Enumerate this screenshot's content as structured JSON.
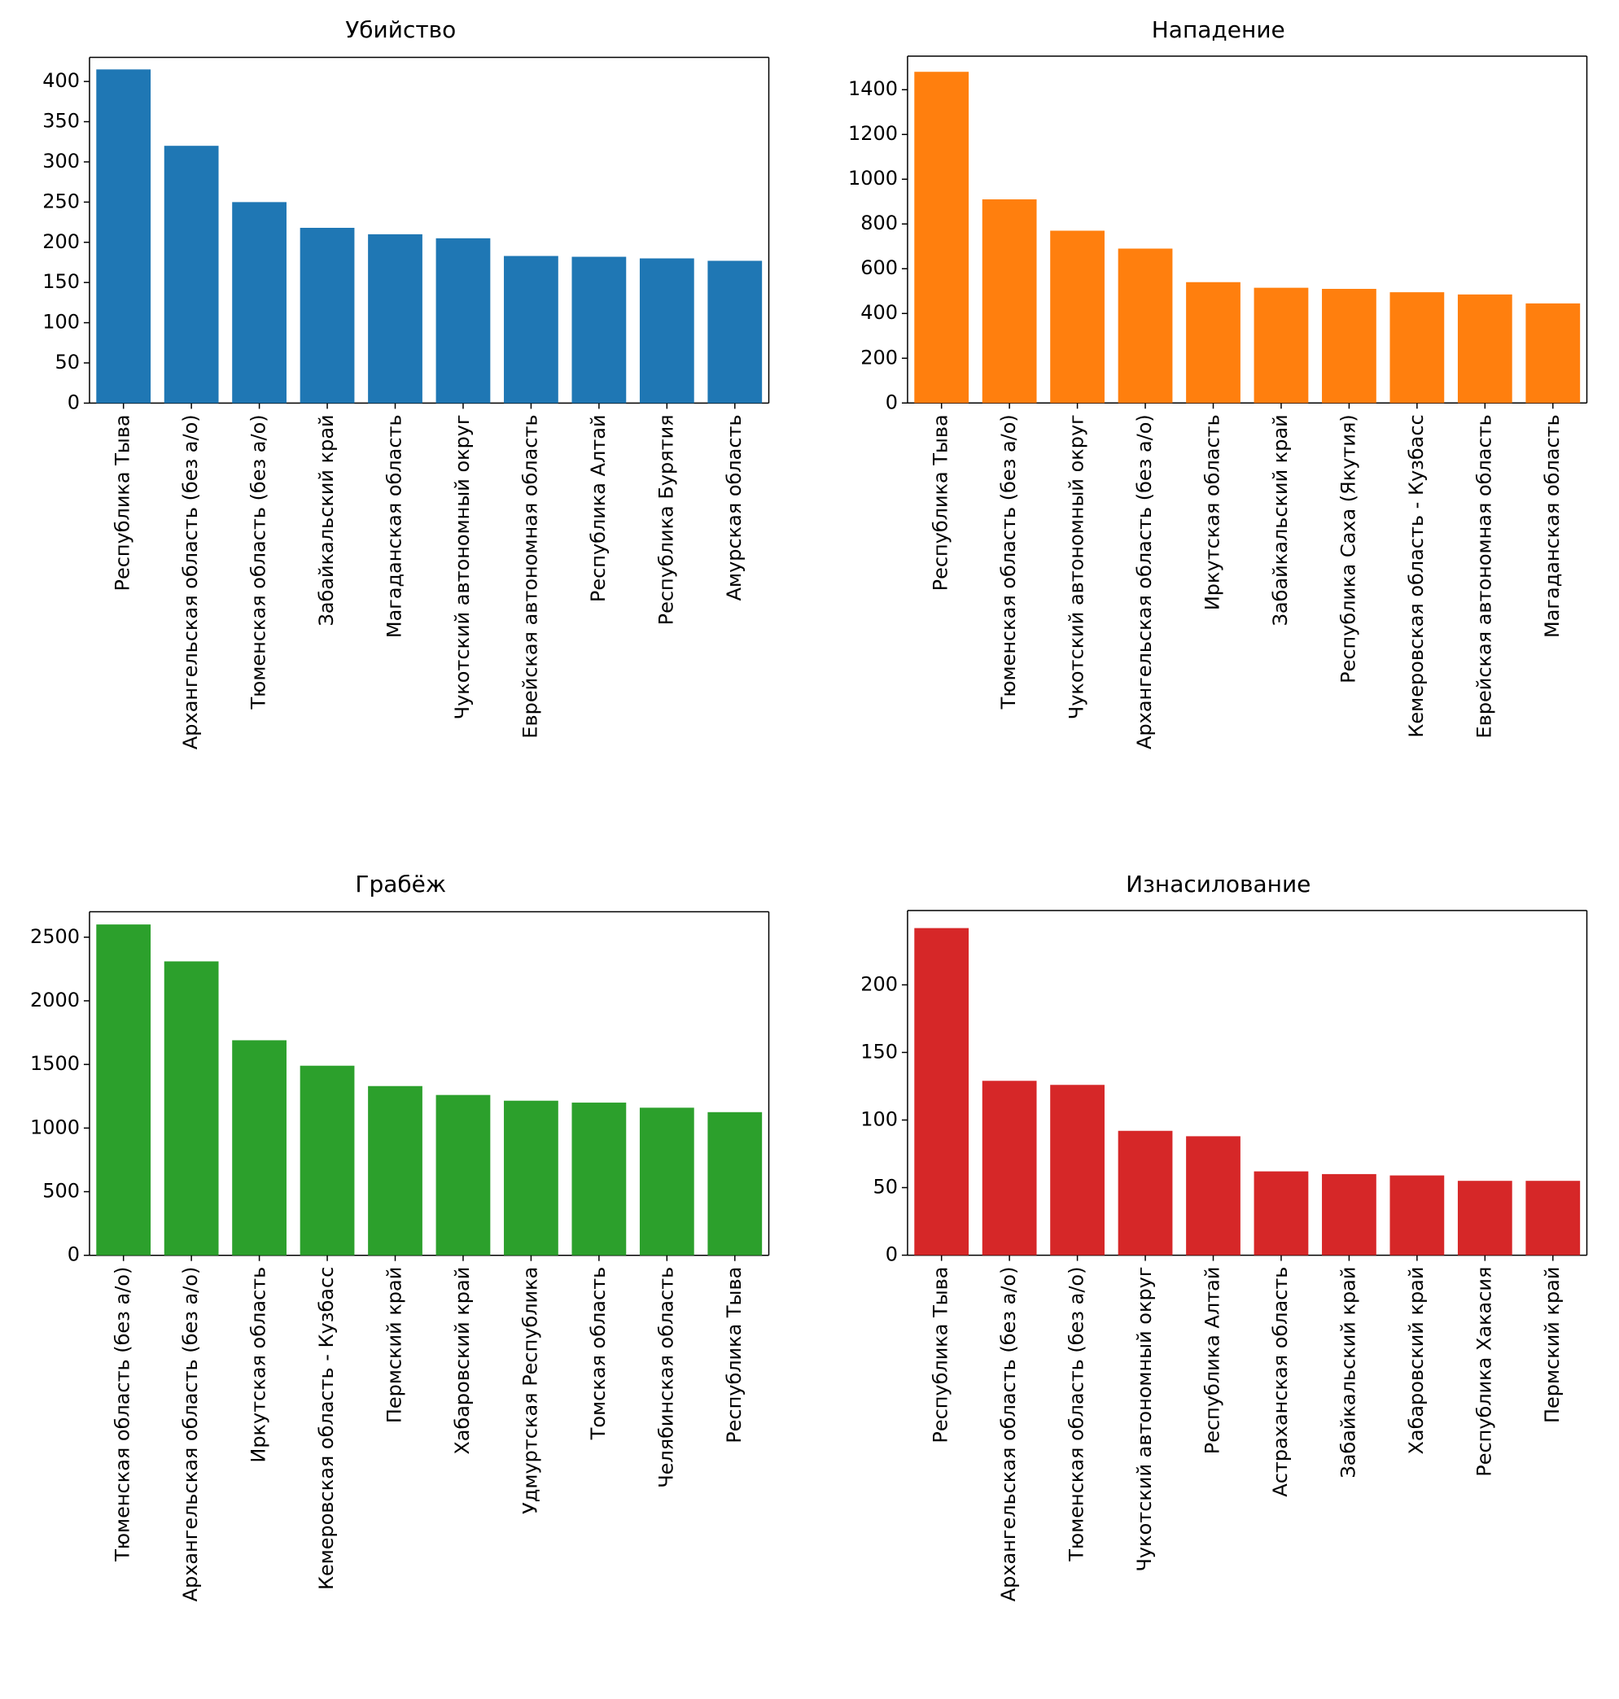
{
  "layout": {
    "rows": 2,
    "cols": 2,
    "background_color": "#ffffff",
    "title_fontsize": 28,
    "tick_fontsize": 24,
    "xlabel_fontsize": 24,
    "xlabel_rotation": 90,
    "axis_color": "#000000",
    "bar_width_ratio": 0.8
  },
  "charts": [
    {
      "id": "chart-murder",
      "title": "Убийство",
      "type": "bar",
      "bar_color": "#1f77b4",
      "ylim": [
        0,
        430
      ],
      "yticks": [
        0,
        50,
        100,
        150,
        200,
        250,
        300,
        350,
        400
      ],
      "categories": [
        "Республика Тыва",
        "Архангельская область (без а/о)",
        "Тюменская область (без а/о)",
        "Забайкальский край",
        "Магаданская область",
        "Чукотский автономный округ",
        "Еврейская автономная область",
        "Республика Алтай",
        "Республика Бурятия",
        "Амурская область"
      ],
      "values": [
        415,
        320,
        250,
        218,
        210,
        205,
        183,
        182,
        180,
        177
      ]
    },
    {
      "id": "chart-assault",
      "title": "Нападение",
      "type": "bar",
      "bar_color": "#ff7f0e",
      "ylim": [
        0,
        1550
      ],
      "yticks": [
        0,
        200,
        400,
        600,
        800,
        1000,
        1200,
        1400
      ],
      "categories": [
        "Республика Тыва",
        "Тюменская область (без а/о)",
        "Чукотский автономный округ",
        "Архангельская область (без а/о)",
        "Иркутская область",
        "Забайкальский край",
        "Республика Саха (Якутия)",
        "Кемеровская область - Кузбасс",
        "Еврейская автономная область",
        "Магаданская область"
      ],
      "values": [
        1480,
        910,
        770,
        690,
        540,
        515,
        510,
        495,
        485,
        445
      ]
    },
    {
      "id": "chart-robbery",
      "title": "Грабёж",
      "type": "bar",
      "bar_color": "#2ca02c",
      "ylim": [
        0,
        2700
      ],
      "yticks": [
        0,
        500,
        1000,
        1500,
        2000,
        2500
      ],
      "categories": [
        "Тюменская область (без а/о)",
        "Архангельская область (без а/о)",
        "Иркутская область",
        "Кемеровская область - Кузбасс",
        "Пермский край",
        "Хабаровский край",
        "Удмуртская Республика",
        "Томская область",
        "Челябинская область",
        "Республика Тыва"
      ],
      "values": [
        2600,
        2310,
        1690,
        1490,
        1330,
        1260,
        1215,
        1200,
        1160,
        1125
      ]
    },
    {
      "id": "chart-rape",
      "title": "Изнасилование",
      "type": "bar",
      "bar_color": "#d62728",
      "ylim": [
        0,
        255
      ],
      "yticks": [
        0,
        50,
        100,
        150,
        200
      ],
      "categories": [
        "Республика Тыва",
        "Архангельская область (без а/о)",
        "Тюменская область (без а/о)",
        "Чукотский автономный округ",
        "Республика Алтай",
        "Астраханская область",
        "Забайкальский край",
        "Хабаровский край",
        "Республика Хакасия",
        "Пермский край"
      ],
      "values": [
        242,
        129,
        126,
        92,
        88,
        62,
        60,
        59,
        55,
        55
      ]
    }
  ]
}
